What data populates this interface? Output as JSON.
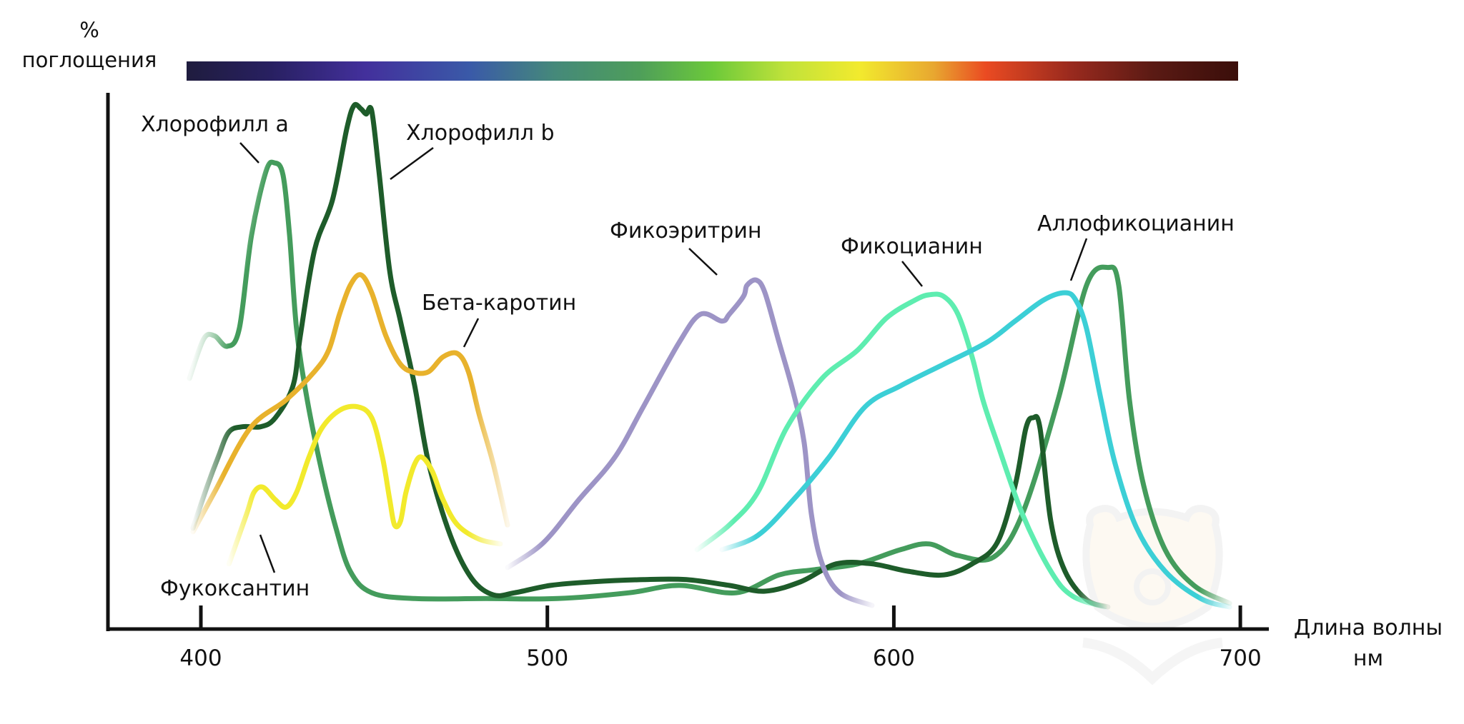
{
  "chart_data": {
    "type": "line",
    "title": "",
    "ylabel": [
      "%",
      "поглощения"
    ],
    "xlabel": [
      "Длина волны",
      "нм"
    ],
    "xlim": [
      372,
      708
    ],
    "ylim": [
      0,
      100
    ],
    "x_ticks": [
      400,
      500,
      600,
      700
    ],
    "x_tick_labels": [
      "400",
      "500",
      "600",
      "700"
    ],
    "grid": false,
    "legend": "none",
    "spectrum_bar": {
      "range_nm": [
        395,
        700
      ],
      "colors": [
        "#1f1c3e",
        "#282061",
        "#43309c",
        "#3a5aa8",
        "#45897a",
        "#4e9e5a",
        "#6cc93a",
        "#c0e23a",
        "#f2ea2e",
        "#e8a830",
        "#ea4b22",
        "#9a2a1e",
        "#5a1a14",
        "#3a0e0a"
      ]
    },
    "series": [
      {
        "name": "Хлорофилл a",
        "color": "#449c5c",
        "points": [
          [
            396.7,
            47.7
          ],
          [
            400.8,
            55.2
          ],
          [
            403.9,
            55.8
          ],
          [
            407.6,
            53.8
          ],
          [
            411.1,
            57.2
          ],
          [
            414.6,
            74.9
          ],
          [
            418.8,
            87.1
          ],
          [
            421.3,
            88.7
          ],
          [
            423.7,
            86.4
          ],
          [
            425.6,
            74.9
          ],
          [
            427.6,
            57.2
          ],
          [
            430.7,
            43.6
          ],
          [
            434.9,
            30.0
          ],
          [
            439.0,
            19.2
          ],
          [
            443.1,
            11.0
          ],
          [
            449.3,
            6.9
          ],
          [
            461.7,
            5.8
          ],
          [
            482.3,
            5.8
          ],
          [
            502.9,
            5.8
          ],
          [
            523.6,
            6.9
          ],
          [
            538.0,
            8.3
          ],
          [
            554.5,
            6.9
          ],
          [
            566.9,
            10.3
          ],
          [
            577.2,
            11.3
          ],
          [
            589.6,
            12.4
          ],
          [
            601.9,
            15.1
          ],
          [
            610.2,
            16.2
          ],
          [
            618.5,
            14.0
          ],
          [
            628.8,
            13.7
          ],
          [
            637.1,
            21.9
          ],
          [
            647.4,
            43.6
          ],
          [
            655.6,
            65.4
          ],
          [
            661.8,
            68.8
          ],
          [
            664.9,
            65.4
          ],
          [
            668.0,
            43.6
          ],
          [
            672.1,
            27.3
          ],
          [
            678.3,
            15.1
          ],
          [
            686.6,
            8.3
          ],
          [
            696.9,
            4.9
          ]
        ],
        "fade_start": true,
        "fade_end": true
      },
      {
        "name": "Хлорофилл b",
        "color": "#1e5c2a",
        "points": [
          [
            397.7,
            19.2
          ],
          [
            401.9,
            27.3
          ],
          [
            405.0,
            32.7
          ],
          [
            408.1,
            37.5
          ],
          [
            412.2,
            38.5
          ],
          [
            417.3,
            38.5
          ],
          [
            421.5,
            40.2
          ],
          [
            426.6,
            46.3
          ],
          [
            428.7,
            55.8
          ],
          [
            432.8,
            72.1
          ],
          [
            438.0,
            81.7
          ],
          [
            442.1,
            95.2
          ],
          [
            444.2,
            99.6
          ],
          [
            446.2,
            99.0
          ],
          [
            447.7,
            98.0
          ],
          [
            449.3,
            98.6
          ],
          [
            451.4,
            87.1
          ],
          [
            454.5,
            68.1
          ],
          [
            457.6,
            58.6
          ],
          [
            461.7,
            46.3
          ],
          [
            465.8,
            31.4
          ],
          [
            472.0,
            17.8
          ],
          [
            478.2,
            9.6
          ],
          [
            484.4,
            6.5
          ],
          [
            490.6,
            6.9
          ],
          [
            500.9,
            8.3
          ],
          [
            513.3,
            9.0
          ],
          [
            527.7,
            9.4
          ],
          [
            540.1,
            9.4
          ],
          [
            552.5,
            8.3
          ],
          [
            562.8,
            7.2
          ],
          [
            573.1,
            9.0
          ],
          [
            583.4,
            12.4
          ],
          [
            593.7,
            12.4
          ],
          [
            604.0,
            11.0
          ],
          [
            614.4,
            10.3
          ],
          [
            622.6,
            12.4
          ],
          [
            629.8,
            16.4
          ],
          [
            635.0,
            27.3
          ],
          [
            638.1,
            38.2
          ],
          [
            640.2,
            40.2
          ],
          [
            642.2,
            38.2
          ],
          [
            645.3,
            20.5
          ],
          [
            649.4,
            11.0
          ],
          [
            655.6,
            5.6
          ],
          [
            661.8,
            4.2
          ]
        ],
        "fade_start": true,
        "fade_end": true
      },
      {
        "name": "Бета-каротин",
        "color": "#e8b22c",
        "points": [
          [
            397.7,
            18.5
          ],
          [
            403.9,
            26.0
          ],
          [
            414.2,
            38.2
          ],
          [
            424.6,
            43.6
          ],
          [
            432.8,
            49.0
          ],
          [
            436.9,
            53.1
          ],
          [
            440.0,
            59.9
          ],
          [
            443.1,
            65.4
          ],
          [
            446.2,
            67.4
          ],
          [
            449.3,
            64.0
          ],
          [
            453.4,
            55.8
          ],
          [
            457.6,
            50.4
          ],
          [
            461.7,
            48.8
          ],
          [
            465.8,
            49.0
          ],
          [
            469.9,
            51.8
          ],
          [
            474.1,
            52.4
          ],
          [
            477.2,
            49.0
          ],
          [
            480.3,
            40.9
          ],
          [
            484.4,
            31.4
          ],
          [
            488.5,
            19.8
          ]
        ],
        "fade_start": true,
        "fade_end": true
      },
      {
        "name": "Фукоксантин",
        "color": "#f2ea2c",
        "points": [
          [
            408.1,
            12.4
          ],
          [
            413.2,
            21.9
          ],
          [
            415.3,
            26.0
          ],
          [
            417.9,
            27.0
          ],
          [
            421.5,
            24.6
          ],
          [
            424.6,
            23.2
          ],
          [
            427.6,
            26.0
          ],
          [
            431.2,
            32.7
          ],
          [
            434.9,
            38.2
          ],
          [
            440.0,
            41.6
          ],
          [
            445.2,
            42.3
          ],
          [
            449.3,
            40.2
          ],
          [
            452.4,
            32.7
          ],
          [
            454.5,
            24.6
          ],
          [
            455.9,
            19.8
          ],
          [
            457.6,
            20.5
          ],
          [
            459.2,
            26.0
          ],
          [
            461.7,
            31.4
          ],
          [
            463.8,
            32.7
          ],
          [
            466.8,
            30.0
          ],
          [
            469.9,
            24.6
          ],
          [
            474.1,
            19.8
          ],
          [
            480.3,
            17.1
          ],
          [
            486.4,
            16.2
          ]
        ],
        "fade_start": true,
        "fade_end": true
      },
      {
        "name": "Фикоэритрин",
        "color": "#9d94c6",
        "points": [
          [
            488.5,
            11.7
          ],
          [
            498.8,
            16.4
          ],
          [
            509.1,
            24.6
          ],
          [
            519.5,
            32.7
          ],
          [
            527.7,
            42.3
          ],
          [
            538.0,
            54.5
          ],
          [
            544.2,
            59.9
          ],
          [
            550.4,
            58.6
          ],
          [
            552.5,
            59.9
          ],
          [
            556.6,
            63.3
          ],
          [
            557.6,
            65.4
          ],
          [
            560.3,
            66.4
          ],
          [
            562.8,
            64.0
          ],
          [
            566.9,
            54.5
          ],
          [
            571.0,
            45.0
          ],
          [
            574.1,
            35.5
          ],
          [
            576.2,
            21.9
          ],
          [
            579.3,
            12.4
          ],
          [
            584.4,
            6.9
          ],
          [
            593.7,
            4.5
          ]
        ],
        "fade_start": true,
        "fade_end": true
      },
      {
        "name": "Фикоцианин",
        "color": "#5eedb0",
        "points": [
          [
            543.2,
            15.1
          ],
          [
            552.5,
            19.8
          ],
          [
            560.7,
            26.0
          ],
          [
            569.0,
            38.2
          ],
          [
            579.3,
            47.7
          ],
          [
            589.6,
            53.1
          ],
          [
            597.9,
            59.2
          ],
          [
            606.1,
            62.6
          ],
          [
            610.2,
            63.6
          ],
          [
            614.4,
            63.3
          ],
          [
            618.5,
            59.9
          ],
          [
            622.6,
            51.8
          ],
          [
            625.7,
            43.6
          ],
          [
            629.8,
            35.5
          ],
          [
            637.1,
            21.9
          ],
          [
            645.3,
            11.0
          ],
          [
            651.5,
            6.3
          ],
          [
            660.8,
            4.2
          ]
        ],
        "fade_start": true,
        "fade_end": true
      },
      {
        "name": "Аллофикоцианин",
        "color": "#3ccfd6",
        "points": [
          [
            550.4,
            15.1
          ],
          [
            560.7,
            17.8
          ],
          [
            571.0,
            24.6
          ],
          [
            581.3,
            32.7
          ],
          [
            591.7,
            42.3
          ],
          [
            602.0,
            46.3
          ],
          [
            614.4,
            50.4
          ],
          [
            626.7,
            54.5
          ],
          [
            635.0,
            58.6
          ],
          [
            643.2,
            62.6
          ],
          [
            649.4,
            64.0
          ],
          [
            652.5,
            62.6
          ],
          [
            655.6,
            57.2
          ],
          [
            659.8,
            43.6
          ],
          [
            663.9,
            31.4
          ],
          [
            670.1,
            19.2
          ],
          [
            678.3,
            11.0
          ],
          [
            688.6,
            5.8
          ],
          [
            696.9,
            4.2
          ]
        ],
        "fade_start": true,
        "fade_end": true
      }
    ],
    "annotations": [
      {
        "text": "Хлорофилл a",
        "series": "Хлорофилл a",
        "at_nm": 421.3
      },
      {
        "text": "Хлорофилл b",
        "series": "Хлорофилл b",
        "at_nm": 451.4
      },
      {
        "text": "Бета-каротин",
        "series": "Бета-каротин",
        "at_nm": 477.2
      },
      {
        "text": "Фукоксантин",
        "series": "Фукоксантин",
        "at_nm": 413.2
      },
      {
        "text": "Фикоэритрин",
        "series": "Фикоэритрин",
        "at_nm": 560.3
      },
      {
        "text": "Фикоцианин",
        "series": "Фикоцианин",
        "at_nm": 610.2
      },
      {
        "text": "Аллофикоцианин",
        "series": "Аллофикоцианин",
        "at_nm": 649.4
      }
    ]
  }
}
